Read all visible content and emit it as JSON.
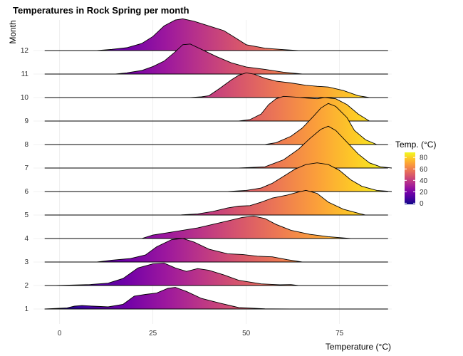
{
  "chart_data": {
    "type": "ridgeline",
    "title": "Temperatures in Rock Spring per month",
    "xlabel": "Temperature (°C)",
    "ylabel": "Month",
    "xlim": [
      -7,
      89
    ],
    "x_ticks": [
      0,
      25,
      50,
      75
    ],
    "grid": true,
    "colormap": "plasma",
    "color_range": [
      -2,
      89
    ],
    "legend": {
      "title": "Temp. (°C)",
      "ticks": [
        0,
        20,
        40,
        60,
        80
      ],
      "placement": "right"
    },
    "ridges": [
      {
        "month": "1",
        "x_start": -4,
        "x_end": 62,
        "density": [
          [
            -4,
            0
          ],
          [
            2,
            0.05
          ],
          [
            4,
            0.12
          ],
          [
            6,
            0.15
          ],
          [
            9,
            0.12
          ],
          [
            13,
            0.09
          ],
          [
            17,
            0.2
          ],
          [
            20,
            0.55
          ],
          [
            23,
            0.62
          ],
          [
            26,
            0.68
          ],
          [
            29,
            0.88
          ],
          [
            31,
            0.92
          ],
          [
            34,
            0.75
          ],
          [
            38,
            0.45
          ],
          [
            43,
            0.25
          ],
          [
            48,
            0.06
          ],
          [
            55,
            0.01
          ],
          [
            62,
            0
          ]
        ]
      },
      {
        "month": "2",
        "x_start": -1,
        "x_end": 64,
        "density": [
          [
            -1,
            0
          ],
          [
            8,
            0.04
          ],
          [
            13,
            0.1
          ],
          [
            17,
            0.3
          ],
          [
            21,
            0.75
          ],
          [
            25,
            0.92
          ],
          [
            28,
            0.95
          ],
          [
            31,
            0.75
          ],
          [
            34,
            0.6
          ],
          [
            37,
            0.72
          ],
          [
            40,
            0.65
          ],
          [
            44,
            0.45
          ],
          [
            48,
            0.22
          ],
          [
            54,
            0.07
          ],
          [
            59,
            0.03
          ],
          [
            62,
            0.04
          ],
          [
            64,
            0
          ]
        ]
      },
      {
        "month": "3",
        "x_start": 10,
        "x_end": 65,
        "density": [
          [
            10,
            0
          ],
          [
            14,
            0.08
          ],
          [
            19,
            0.15
          ],
          [
            23,
            0.3
          ],
          [
            26,
            0.65
          ],
          [
            30,
            0.95
          ],
          [
            33,
            1.0
          ],
          [
            36,
            0.85
          ],
          [
            40,
            0.55
          ],
          [
            45,
            0.35
          ],
          [
            49,
            0.32
          ],
          [
            53,
            0.25
          ],
          [
            57,
            0.22
          ],
          [
            61,
            0.1
          ],
          [
            65,
            0
          ]
        ]
      },
      {
        "month": "4",
        "x_start": 22,
        "x_end": 78,
        "density": [
          [
            22,
            0
          ],
          [
            25,
            0.15
          ],
          [
            29,
            0.25
          ],
          [
            33,
            0.35
          ],
          [
            37,
            0.45
          ],
          [
            41,
            0.6
          ],
          [
            45,
            0.75
          ],
          [
            49,
            0.9
          ],
          [
            52,
            0.95
          ],
          [
            55,
            0.85
          ],
          [
            58,
            0.6
          ],
          [
            62,
            0.35
          ],
          [
            67,
            0.18
          ],
          [
            72,
            0.08
          ],
          [
            78,
            0
          ]
        ]
      },
      {
        "month": "5",
        "x_start": 32,
        "x_end": 82,
        "density": [
          [
            32,
            0
          ],
          [
            37,
            0.05
          ],
          [
            41,
            0.15
          ],
          [
            45,
            0.3
          ],
          [
            48,
            0.38
          ],
          [
            51,
            0.4
          ],
          [
            54,
            0.55
          ],
          [
            57,
            0.72
          ],
          [
            61,
            0.85
          ],
          [
            64,
            0.98
          ],
          [
            66,
            1.05
          ],
          [
            69,
            0.92
          ],
          [
            72,
            0.55
          ],
          [
            76,
            0.25
          ],
          [
            80,
            0.08
          ],
          [
            82,
            0
          ]
        ]
      },
      {
        "month": "6",
        "x_start": 45,
        "x_end": 89,
        "density": [
          [
            45,
            0
          ],
          [
            50,
            0.05
          ],
          [
            54,
            0.15
          ],
          [
            57,
            0.35
          ],
          [
            60,
            0.65
          ],
          [
            63,
            0.95
          ],
          [
            66,
            1.15
          ],
          [
            69,
            1.22
          ],
          [
            72,
            1.15
          ],
          [
            75,
            0.9
          ],
          [
            78,
            0.5
          ],
          [
            81,
            0.22
          ],
          [
            85,
            0.05
          ],
          [
            89,
            0
          ]
        ]
      },
      {
        "month": "7",
        "x_start": 48,
        "x_end": 89,
        "density": [
          [
            48,
            0
          ],
          [
            55,
            0.05
          ],
          [
            60,
            0.35
          ],
          [
            64,
            0.8
          ],
          [
            67,
            1.25
          ],
          [
            70,
            1.65
          ],
          [
            72,
            1.78
          ],
          [
            74,
            1.6
          ],
          [
            77,
            1.1
          ],
          [
            80,
            0.6
          ],
          [
            83,
            0.22
          ],
          [
            86,
            0.05
          ],
          [
            89,
            0
          ]
        ]
      },
      {
        "month": "8",
        "x_start": 55,
        "x_end": 85,
        "density": [
          [
            55,
            0
          ],
          [
            58,
            0.08
          ],
          [
            62,
            0.35
          ],
          [
            65,
            0.7
          ],
          [
            68,
            1.2
          ],
          [
            70,
            1.55
          ],
          [
            72,
            1.75
          ],
          [
            74,
            1.62
          ],
          [
            77,
            1.15
          ],
          [
            79,
            0.6
          ],
          [
            82,
            0.2
          ],
          [
            85,
            0
          ]
        ]
      },
      {
        "month": "9",
        "x_start": 48,
        "x_end": 83,
        "density": [
          [
            48,
            0
          ],
          [
            51,
            0.06
          ],
          [
            54,
            0.3
          ],
          [
            56,
            0.7
          ],
          [
            58,
            0.95
          ],
          [
            60,
            1.05
          ],
          [
            63,
            1.02
          ],
          [
            66,
            0.98
          ],
          [
            69,
            0.95
          ],
          [
            71,
            1.0
          ],
          [
            74,
            0.95
          ],
          [
            77,
            0.7
          ],
          [
            80,
            0.3
          ],
          [
            83,
            0
          ]
        ]
      },
      {
        "month": "10",
        "x_start": 35,
        "x_end": 83,
        "density": [
          [
            35,
            0
          ],
          [
            38,
            0.03
          ],
          [
            40,
            0.08
          ],
          [
            43,
            0.4
          ],
          [
            46,
            0.75
          ],
          [
            48,
            0.95
          ],
          [
            50,
            1.05
          ],
          [
            52,
            1.0
          ],
          [
            55,
            0.82
          ],
          [
            58,
            0.7
          ],
          [
            62,
            0.62
          ],
          [
            66,
            0.52
          ],
          [
            69,
            0.48
          ],
          [
            72,
            0.45
          ],
          [
            76,
            0.3
          ],
          [
            80,
            0.08
          ],
          [
            83,
            0
          ]
        ]
      },
      {
        "month": "11",
        "x_start": 15,
        "x_end": 65,
        "density": [
          [
            15,
            0
          ],
          [
            18,
            0.05
          ],
          [
            22,
            0.15
          ],
          [
            25,
            0.32
          ],
          [
            28,
            0.55
          ],
          [
            31,
            0.95
          ],
          [
            33,
            1.25
          ],
          [
            35,
            1.28
          ],
          [
            38,
            1.05
          ],
          [
            42,
            0.75
          ],
          [
            46,
            0.48
          ],
          [
            50,
            0.3
          ],
          [
            55,
            0.2
          ],
          [
            60,
            0.08
          ],
          [
            65,
            0
          ]
        ]
      },
      {
        "month": "12",
        "x_start": 10,
        "x_end": 64,
        "density": [
          [
            10,
            0
          ],
          [
            14,
            0.05
          ],
          [
            18,
            0.12
          ],
          [
            22,
            0.3
          ],
          [
            25,
            0.6
          ],
          [
            28,
            1.05
          ],
          [
            31,
            1.3
          ],
          [
            33,
            1.35
          ],
          [
            36,
            1.25
          ],
          [
            40,
            1.05
          ],
          [
            44,
            0.85
          ],
          [
            47,
            0.55
          ],
          [
            50,
            0.25
          ],
          [
            55,
            0.1
          ],
          [
            60,
            0.04
          ],
          [
            64,
            0
          ]
        ]
      }
    ]
  }
}
